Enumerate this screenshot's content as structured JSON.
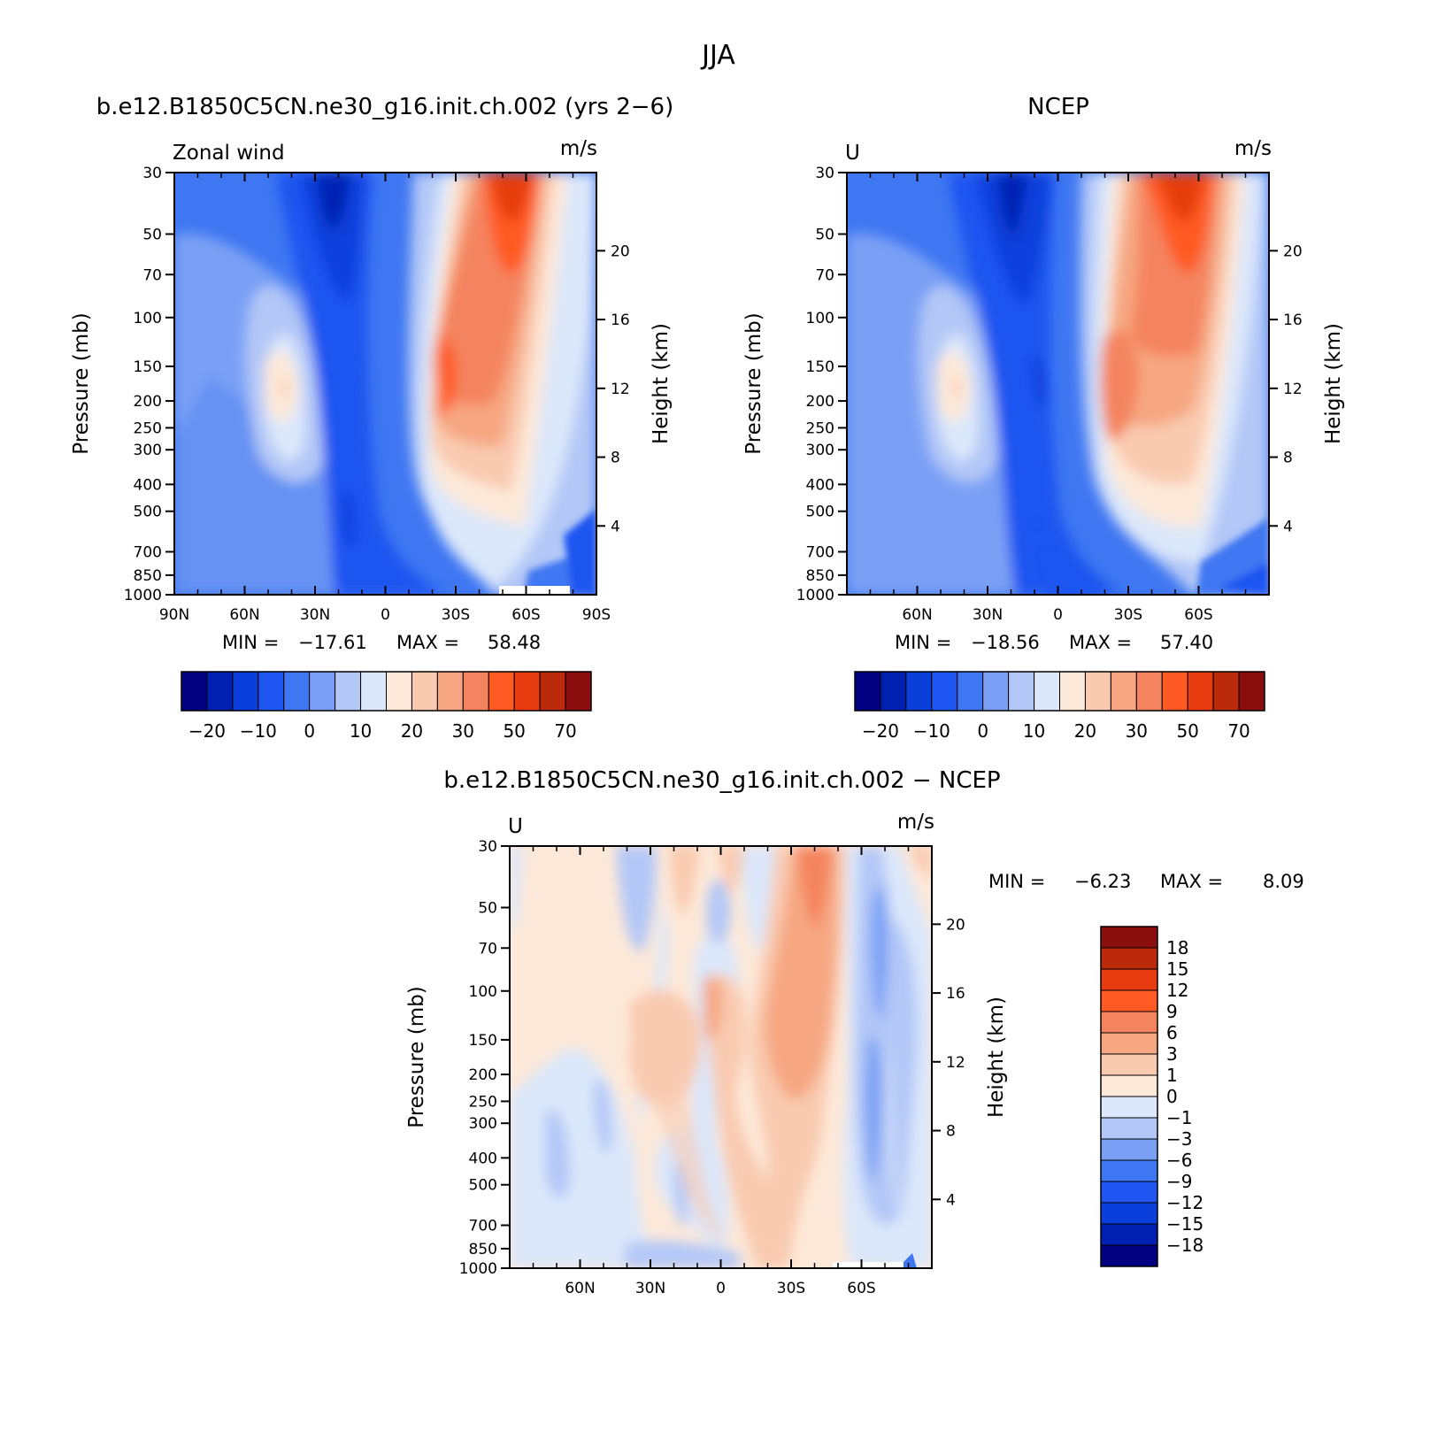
{
  "figure": {
    "title": "JJA"
  },
  "colors": {
    "abs_scale": [
      "#000080",
      "#0020b2",
      "#0a3fdc",
      "#1f55f0",
      "#3f77f2",
      "#7aa0f5",
      "#b4c8f7",
      "#dbe7fa",
      "#fde9d9",
      "#f9cab0",
      "#f6a782",
      "#f4845f",
      "#ff5a24",
      "#e63c10",
      "#bb2a0a",
      "#8a0e0e"
    ],
    "diff_scale": [
      "#000080",
      "#0020b2",
      "#0a3fdc",
      "#1f55f0",
      "#3f77f2",
      "#7aa0f5",
      "#b4c8f7",
      "#dbe7fa",
      "#fde9d9",
      "#f9cab0",
      "#f6a782",
      "#f4845f",
      "#ff5a24",
      "#e63c10",
      "#bb2a0a",
      "#8a0e0e"
    ]
  },
  "panels": {
    "left": {
      "title": "b.e12.B1850C5CN.ne30_g16.init.ch.002 (yrs 2−6)",
      "left_string": "Zonal wind",
      "units": "m/s",
      "ylabel": "Pressure (mb)",
      "ylabel_right": "Height (km)",
      "p_ticks": [
        "30",
        "50",
        "70",
        "100",
        "150",
        "200",
        "250",
        "300",
        "400",
        "500",
        "700",
        "850",
        "1000"
      ],
      "h_ticks": [
        "20",
        "16",
        "12",
        "8",
        "4"
      ],
      "lat_ticks": [
        "90N",
        "60N",
        "30N",
        "0",
        "30S",
        "60S",
        "90S"
      ],
      "min_label": "MIN =",
      "min_value": "−17.61",
      "max_label": "MAX =",
      "max_value": "58.48",
      "colorbar_labels": [
        "−20",
        "−10",
        "0",
        "10",
        "20",
        "30",
        "50",
        "70"
      ]
    },
    "right": {
      "title": "NCEP",
      "left_string": "U",
      "units": "m/s",
      "ylabel": "Pressure (mb)",
      "ylabel_right": "Height (km)",
      "p_ticks": [
        "30",
        "50",
        "70",
        "100",
        "150",
        "200",
        "250",
        "300",
        "400",
        "500",
        "700",
        "850",
        "1000"
      ],
      "h_ticks": [
        "20",
        "16",
        "12",
        "8",
        "4"
      ],
      "lat_ticks": [
        "60N",
        "30N",
        "0",
        "30S",
        "60S"
      ],
      "min_label": "MIN =",
      "min_value": "−18.56",
      "max_label": "MAX =",
      "max_value": "57.40",
      "colorbar_labels": [
        "−20",
        "−10",
        "0",
        "10",
        "20",
        "30",
        "50",
        "70"
      ]
    },
    "bottom": {
      "title": "b.e12.B1850C5CN.ne30_g16.init.ch.002 − NCEP",
      "left_string": "U",
      "units": "m/s",
      "ylabel": "Pressure (mb)",
      "ylabel_right": "Height (km)",
      "p_ticks": [
        "30",
        "50",
        "70",
        "100",
        "150",
        "200",
        "250",
        "300",
        "400",
        "500",
        "700",
        "850",
        "1000"
      ],
      "h_ticks": [
        "20",
        "16",
        "12",
        "8",
        "4"
      ],
      "lat_ticks": [
        "60N",
        "30N",
        "0",
        "30S",
        "60S"
      ],
      "min_label": "MIN =",
      "min_value": "−6.23",
      "max_label": "MAX =",
      "max_value": "8.09",
      "colorbar_labels": [
        "18",
        "15",
        "12",
        "9",
        "6",
        "3",
        "1",
        "0",
        "−1",
        "−3",
        "−6",
        "−9",
        "−12",
        "−15",
        "−18"
      ]
    }
  },
  "chart_data": [
    {
      "type": "heatmap",
      "title": "b.e12.B1850C5CN.ne30_g16.init.ch.002 (yrs 2−6)",
      "variable": "Zonal wind",
      "units": "m/s",
      "xlabel": "",
      "ylabel": "Pressure (mb)",
      "ylabel_right": "Height (km)",
      "x_ticks": [
        "90N",
        "60N",
        "30N",
        "0",
        "30S",
        "60S",
        "90S"
      ],
      "y_scale": "log",
      "ylim": [
        1000,
        30
      ],
      "contour_levels": [
        -25,
        -20,
        -15,
        -10,
        -5,
        0,
        5,
        10,
        15,
        20,
        25,
        30,
        40,
        50,
        60,
        70
      ],
      "min": -17.61,
      "max": 58.48,
      "features": [
        {
          "kind": "max",
          "lat": -47,
          "pressure": 30,
          "value": 55
        },
        {
          "kind": "max",
          "lat": -30,
          "pressure": 200,
          "value": 45
        },
        {
          "kind": "min",
          "lat": 15,
          "pressure": 30,
          "value": -17
        },
        {
          "kind": "max",
          "lat": 50,
          "pressure": 200,
          "value": 15
        }
      ]
    },
    {
      "type": "heatmap",
      "title": "NCEP",
      "variable": "U",
      "units": "m/s",
      "xlabel": "",
      "ylabel": "Pressure (mb)",
      "ylabel_right": "Height (km)",
      "x_ticks": [
        "60N",
        "30N",
        "0",
        "30S",
        "60S"
      ],
      "y_scale": "log",
      "ylim": [
        1000,
        30
      ],
      "contour_levels": [
        -25,
        -20,
        -15,
        -10,
        -5,
        0,
        5,
        10,
        15,
        20,
        25,
        30,
        40,
        50,
        60,
        70
      ],
      "min": -18.56,
      "max": 57.4,
      "features": [
        {
          "kind": "max",
          "lat": -58,
          "pressure": 30,
          "value": 55
        },
        {
          "kind": "max",
          "lat": -30,
          "pressure": 200,
          "value": 40
        },
        {
          "kind": "min",
          "lat": 18,
          "pressure": 30,
          "value": -18
        },
        {
          "kind": "max",
          "lat": 45,
          "pressure": 200,
          "value": 15
        }
      ]
    },
    {
      "type": "heatmap",
      "title": "b.e12.B1850C5CN.ne30_g16.init.ch.002 − NCEP",
      "variable": "U",
      "units": "m/s",
      "xlabel": "",
      "ylabel": "Pressure (mb)",
      "ylabel_right": "Height (km)",
      "x_ticks": [
        "60N",
        "30N",
        "0",
        "30S",
        "60S"
      ],
      "y_scale": "log",
      "ylim": [
        1000,
        30
      ],
      "contour_levels": [
        -18,
        -15,
        -12,
        -9,
        -6,
        -3,
        -1,
        0,
        1,
        3,
        6,
        9,
        12,
        15,
        18
      ],
      "min": -6.23,
      "max": 8.09,
      "features": [
        {
          "kind": "max",
          "lat": -45,
          "pressure": 30,
          "value": 7
        },
        {
          "kind": "min",
          "lat": -68,
          "pressure": 150,
          "value": -5
        }
      ]
    }
  ]
}
